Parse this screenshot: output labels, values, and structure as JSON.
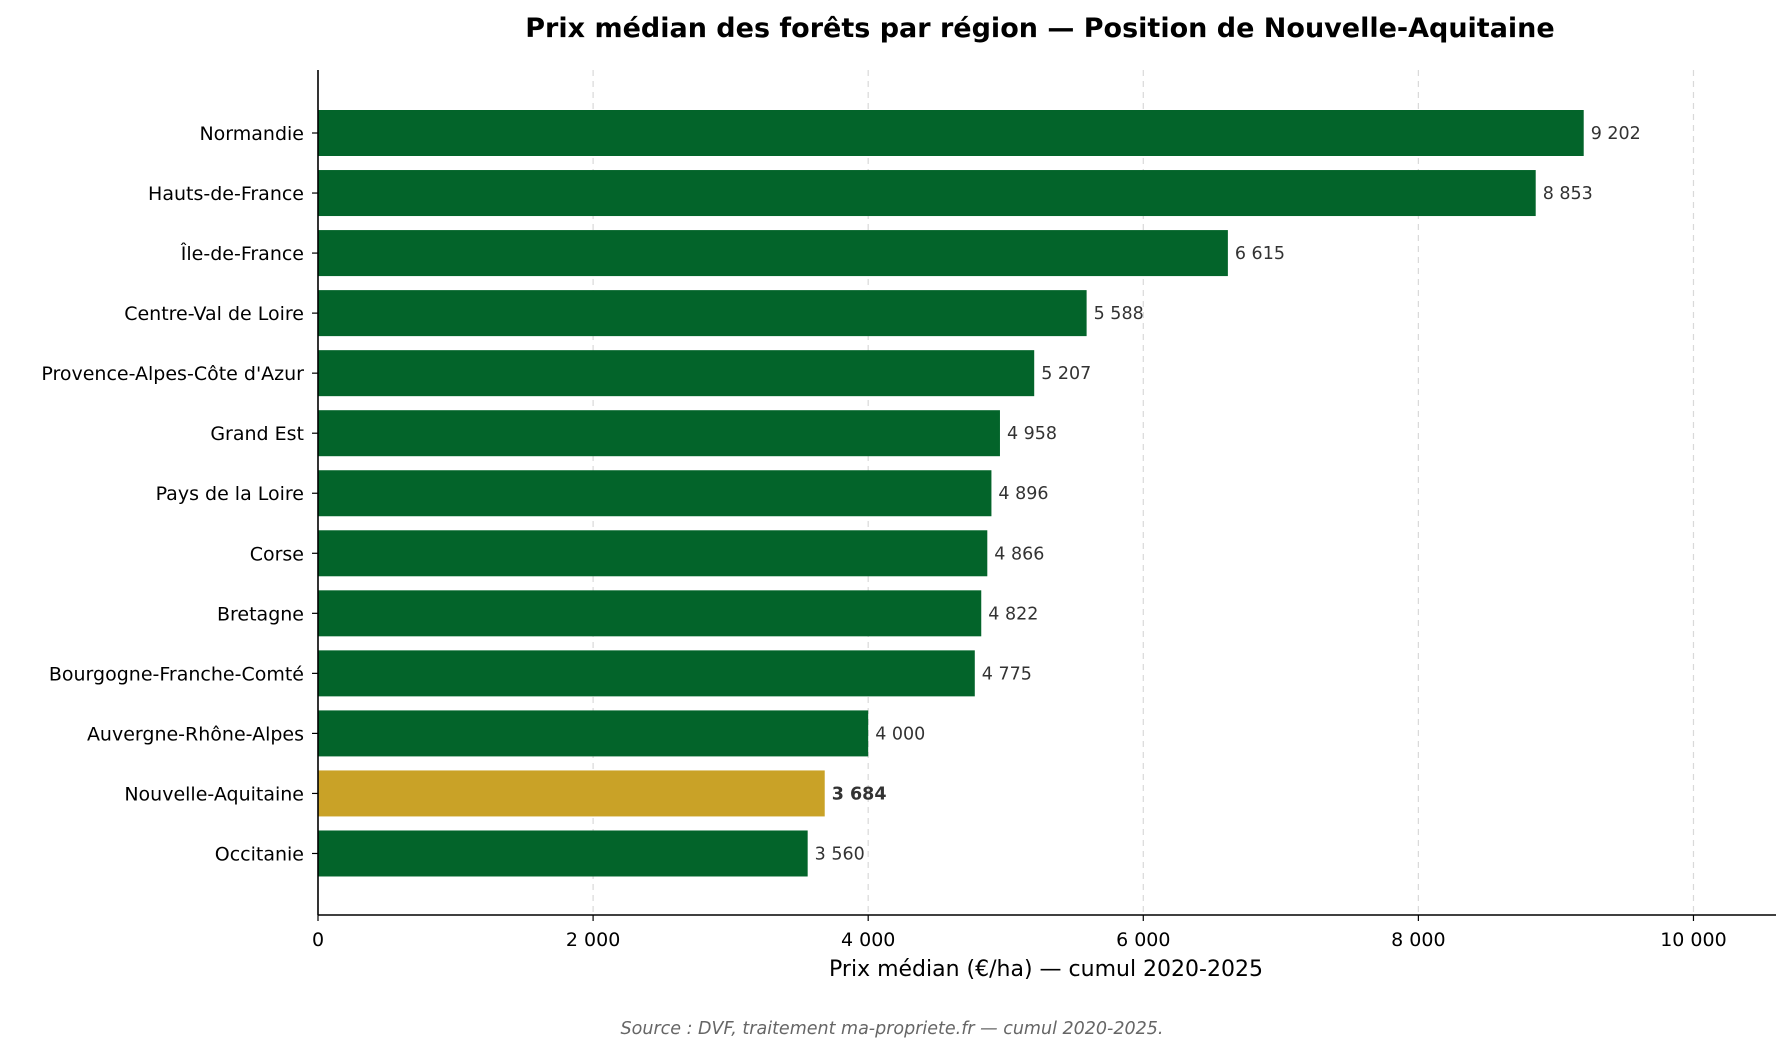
{
  "chart_data": {
    "type": "bar",
    "orientation": "horizontal",
    "title": "Prix médian des forêts par région — Position de Nouvelle-Aquitaine",
    "xlabel": "Prix médian (€/ha) — cumul 2020-2025",
    "ylabel": "",
    "xlim": [
      0,
      10600
    ],
    "xticks": [
      0,
      2000,
      4000,
      6000,
      8000,
      10000
    ],
    "xtick_labels": [
      "0",
      "2 000",
      "4 000",
      "6 000",
      "8 000",
      "10 000"
    ],
    "grid": "vertical dashed",
    "categories": [
      "Normandie",
      "Hauts-de-France",
      "Île-de-France",
      "Centre-Val de Loire",
      "Provence-Alpes-Côte d'Azur",
      "Grand Est",
      "Pays de la Loire",
      "Corse",
      "Bretagne",
      "Bourgogne-Franche-Comté",
      "Auvergne-Rhône-Alpes",
      "Nouvelle-Aquitaine",
      "Occitanie"
    ],
    "values": [
      9202,
      8853,
      6615,
      5588,
      5207,
      4958,
      4896,
      4866,
      4822,
      4775,
      4000,
      3684,
      3560
    ],
    "value_labels": [
      "9 202",
      "8 853",
      "6 615",
      "5 588",
      "5 207",
      "4 958",
      "4 896",
      "4 866",
      "4 822",
      "4 775",
      "4 000",
      "3 684",
      "3 560"
    ],
    "highlight": "Nouvelle-Aquitaine",
    "colors": {
      "bar": "#03642a",
      "highlight": "#c9a227",
      "grid": "#d9d9d9",
      "axis": "#000000",
      "value_text": "#333333",
      "source_text": "#666666"
    }
  },
  "source_note": "Source : DVF, traitement ma-propriete.fr — cumul 2020-2025."
}
